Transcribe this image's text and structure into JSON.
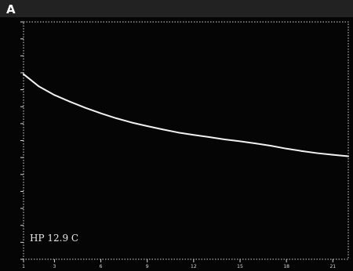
{
  "panel_label": "A",
  "annotation": "HP  12.9  C",
  "colors": {
    "background": "#050505",
    "trace": "#f2f2f2",
    "axis": "#d8d8d8"
  },
  "chart_data": {
    "type": "line",
    "title": "",
    "xlabel": "",
    "ylabel": "",
    "x_ticks": [
      "1",
      "3",
      "6",
      "9",
      "12",
      "15",
      "18",
      "21"
    ],
    "xlim": [
      1,
      22
    ],
    "y_tick_count": 14,
    "ylim": [
      0,
      1
    ],
    "grid": false,
    "series": [
      {
        "x": [
          1,
          2,
          3,
          4,
          5,
          6,
          7,
          8,
          9,
          10,
          11,
          12,
          13,
          14,
          15,
          16,
          17,
          18,
          19,
          20,
          21,
          22
        ],
        "y": [
          0.78,
          0.728,
          0.692,
          0.664,
          0.638,
          0.615,
          0.594,
          0.576,
          0.561,
          0.547,
          0.534,
          0.524,
          0.515,
          0.505,
          0.497,
          0.488,
          0.478,
          0.466,
          0.456,
          0.447,
          0.44,
          0.434
        ]
      }
    ]
  }
}
